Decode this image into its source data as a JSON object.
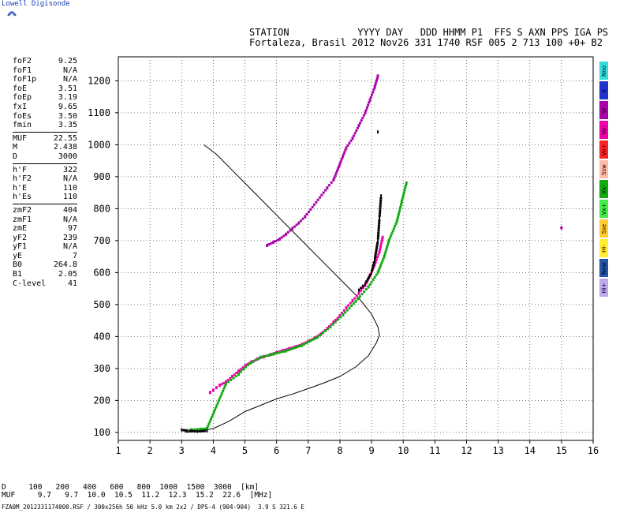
{
  "header": {
    "brand": "Lowell Digisonde",
    "line1": "STATION            YYYY DAY   DDD HHMM P1  FFS S AXN PPS IGA PS",
    "line2": "Fortaleza, Brasil 2012 Nov26 331 1740 RSF 005 2 713 100 +0+ B2"
  },
  "params": {
    "group1": [
      {
        "label": "foF2",
        "value": "9.25"
      },
      {
        "label": "foF1",
        "value": "N/A"
      },
      {
        "label": "foF1p",
        "value": "N/A"
      },
      {
        "label": "foE",
        "value": "3.51"
      },
      {
        "label": "foEp",
        "value": "3.19"
      },
      {
        "label": "fxI",
        "value": "9.65"
      },
      {
        "label": "foEs",
        "value": "3.50"
      },
      {
        "label": "fmin",
        "value": "3.35"
      }
    ],
    "group2": [
      {
        "label": "MUF",
        "value": "22.55"
      },
      {
        "label": "M",
        "value": "2.438"
      },
      {
        "label": "D",
        "value": "3000"
      }
    ],
    "group3": [
      {
        "label": "h'F",
        "value": "322"
      },
      {
        "label": "h'F2",
        "value": "N/A"
      },
      {
        "label": "h'E",
        "value": "110"
      },
      {
        "label": "h'Es",
        "value": "110"
      }
    ],
    "group4": [
      {
        "label": "zmF2",
        "value": "404"
      },
      {
        "label": "zmF1",
        "value": "N/A"
      },
      {
        "label": "zmE",
        "value": "97"
      },
      {
        "label": "yF2",
        "value": "239"
      },
      {
        "label": "yF1",
        "value": "N/A"
      },
      {
        "label": "yE",
        "value": "7"
      },
      {
        "label": "B0",
        "value": "264.8"
      },
      {
        "label": "B1",
        "value": "2.05"
      },
      {
        "label": "C-level",
        "value": "41"
      }
    ]
  },
  "legend": [
    {
      "label": "Nno",
      "color": "#33dddd"
    },
    {
      "label": "E",
      "color": "#2233cc"
    },
    {
      "label": "W",
      "color": "#aa00aa"
    },
    {
      "label": "Vo-",
      "color": "#ee00aa"
    },
    {
      "label": "Vo+",
      "color": "#ff2222"
    },
    {
      "label": "Ssw",
      "color": "#ffbbaa"
    },
    {
      "label": "Vx-",
      "color": "#11aa11"
    },
    {
      "label": "Vx+",
      "color": "#44ee44"
    },
    {
      "label": "Sse",
      "color": "#ffcc33"
    },
    {
      "label": "Hi-",
      "color": "#ffee33"
    },
    {
      "label": "Nnw",
      "color": "#2255aa"
    },
    {
      "label": "Hi+",
      "color": "#bbaaee"
    }
  ],
  "muf_table": {
    "d_label": "D",
    "d_values": [
      "100",
      "200",
      "400",
      "600",
      "800",
      "1000",
      "1500",
      "3000"
    ],
    "d_unit": "[km]",
    "muf_label": "MUF",
    "muf_values": [
      "9.7",
      "9.7",
      "10.0",
      "10.5",
      "11.2",
      "12.3",
      "15.2",
      "22.6"
    ],
    "muf_unit": "[MHz]"
  },
  "footer": "FZA0M_2012331174000.RSF / 300x256h 50 kHz 5.0 km 2x2 / DPS-4 (904-904)  3.9 S 321.6 E",
  "chart_data": {
    "type": "scatter",
    "xlim": [
      1,
      16
    ],
    "ylim": [
      75,
      1275
    ],
    "x_ticks": [
      1,
      2,
      3,
      4,
      5,
      6,
      7,
      8,
      9,
      10,
      11,
      12,
      13,
      14,
      15,
      16
    ],
    "y_ticks": [
      100,
      200,
      300,
      400,
      500,
      600,
      700,
      800,
      900,
      1000,
      1100,
      1200
    ],
    "grid": true,
    "series": [
      {
        "color": "#ee00aa",
        "points": [
          [
            3.9,
            225
          ],
          [
            4.0,
            232
          ],
          [
            4.1,
            240
          ],
          [
            4.2,
            247
          ],
          [
            4.4,
            258
          ],
          [
            4.6,
            275
          ],
          [
            4.8,
            292
          ],
          [
            5.0,
            308
          ],
          [
            5.2,
            320
          ],
          [
            5.4,
            330
          ],
          [
            5.6,
            337
          ],
          [
            5.8,
            343
          ],
          [
            6.0,
            350
          ],
          [
            6.2,
            356
          ],
          [
            6.4,
            362
          ],
          [
            6.6,
            368
          ],
          [
            6.8,
            375
          ],
          [
            7.0,
            385
          ],
          [
            7.2,
            395
          ],
          [
            7.4,
            408
          ],
          [
            7.6,
            425
          ],
          [
            7.8,
            445
          ],
          [
            8.0,
            465
          ],
          [
            8.2,
            490
          ],
          [
            8.4,
            512
          ],
          [
            8.6,
            535
          ],
          [
            8.8,
            560
          ],
          [
            8.95,
            590
          ],
          [
            9.1,
            625
          ],
          [
            9.25,
            665
          ],
          [
            9.35,
            710
          ]
        ]
      },
      {
        "color": "#11aa11",
        "points": [
          [
            3.3,
            108
          ],
          [
            3.6,
            110
          ],
          [
            3.8,
            112
          ],
          [
            4.4,
            252
          ],
          [
            4.8,
            282
          ],
          [
            5.1,
            312
          ],
          [
            5.5,
            335
          ],
          [
            5.9,
            345
          ],
          [
            6.3,
            355
          ],
          [
            6.8,
            372
          ],
          [
            7.3,
            398
          ],
          [
            7.7,
            430
          ],
          [
            8.1,
            468
          ],
          [
            8.5,
            510
          ],
          [
            8.9,
            555
          ],
          [
            9.2,
            600
          ],
          [
            9.4,
            650
          ],
          [
            9.55,
            700
          ],
          [
            9.8,
            760
          ],
          [
            9.95,
            820
          ],
          [
            10.1,
            880
          ]
        ]
      },
      {
        "color": "#aa00aa",
        "points": [
          [
            5.7,
            685
          ],
          [
            5.9,
            695
          ],
          [
            6.1,
            705
          ],
          [
            6.3,
            720
          ],
          [
            6.5,
            738
          ],
          [
            6.7,
            755
          ],
          [
            6.9,
            775
          ],
          [
            7.6,
            865
          ],
          [
            7.8,
            890
          ],
          [
            8.0,
            940
          ],
          [
            8.2,
            990
          ],
          [
            8.4,
            1020
          ],
          [
            8.6,
            1060
          ],
          [
            8.8,
            1100
          ],
          [
            8.95,
            1140
          ],
          [
            9.1,
            1180
          ],
          [
            9.2,
            1215
          ],
          [
            15.0,
            740
          ]
        ]
      },
      {
        "color": "#000000",
        "points": [
          [
            3.0,
            108
          ],
          [
            3.2,
            105
          ],
          [
            3.5,
            103
          ],
          [
            3.8,
            105
          ],
          [
            8.6,
            545
          ],
          [
            8.8,
            565
          ],
          [
            9.0,
            600
          ],
          [
            9.1,
            640
          ],
          [
            9.2,
            700
          ],
          [
            9.25,
            770
          ],
          [
            9.3,
            840
          ],
          [
            9.2,
            1040
          ]
        ]
      }
    ],
    "profile": {
      "color": "#000000",
      "points": [
        [
          3.1,
          100
        ],
        [
          3.5,
          103
        ],
        [
          4.0,
          112
        ],
        [
          4.5,
          135
        ],
        [
          5.0,
          165
        ],
        [
          5.5,
          185
        ],
        [
          6.0,
          205
        ],
        [
          6.5,
          220
        ],
        [
          7.0,
          237
        ],
        [
          7.5,
          255
        ],
        [
          8.0,
          275
        ],
        [
          8.5,
          305
        ],
        [
          8.9,
          340
        ],
        [
          9.15,
          380
        ],
        [
          9.25,
          405
        ],
        [
          9.2,
          430
        ],
        [
          9.0,
          470
        ],
        [
          8.6,
          520
        ],
        [
          8.2,
          560
        ],
        [
          7.6,
          620
        ],
        [
          7.0,
          680
        ],
        [
          6.4,
          740
        ],
        [
          5.8,
          800
        ],
        [
          5.2,
          860
        ],
        [
          4.6,
          920
        ],
        [
          4.1,
          970
        ],
        [
          3.7,
          1000
        ]
      ]
    }
  }
}
